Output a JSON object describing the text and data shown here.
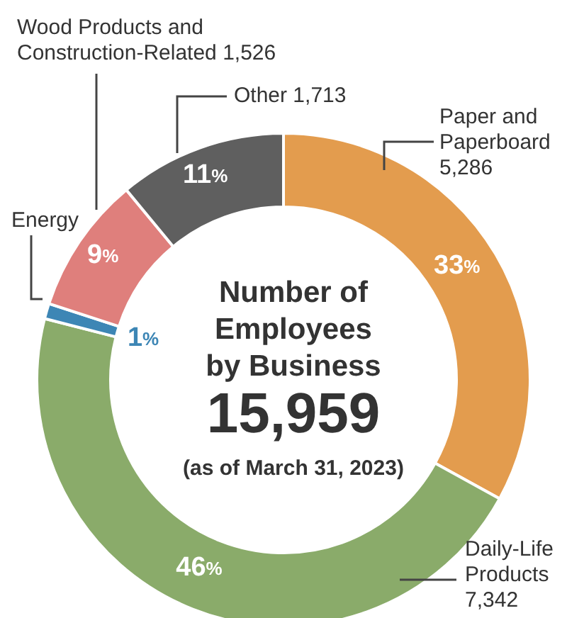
{
  "chart_data": {
    "type": "donut",
    "title": "Number of Employees by Business",
    "subtitle": "15,959",
    "annotations": [
      "(as of March 31, 2023)"
    ],
    "categories": [
      "Paper and Paperboard 5,286",
      "Daily-Life Products 7,342",
      "Energy",
      "Wood Products and Construction-Related 1,526",
      "Other 1,713"
    ],
    "values": [
      33,
      46,
      1,
      9,
      11
    ],
    "colors": [
      "#e39c4e",
      "#8aab6a",
      "#3d86b5",
      "#df7f7c",
      "#5f5f5f"
    ],
    "value_labels": [
      "33%",
      "46%",
      "1%",
      "9%",
      "11%"
    ]
  }
}
